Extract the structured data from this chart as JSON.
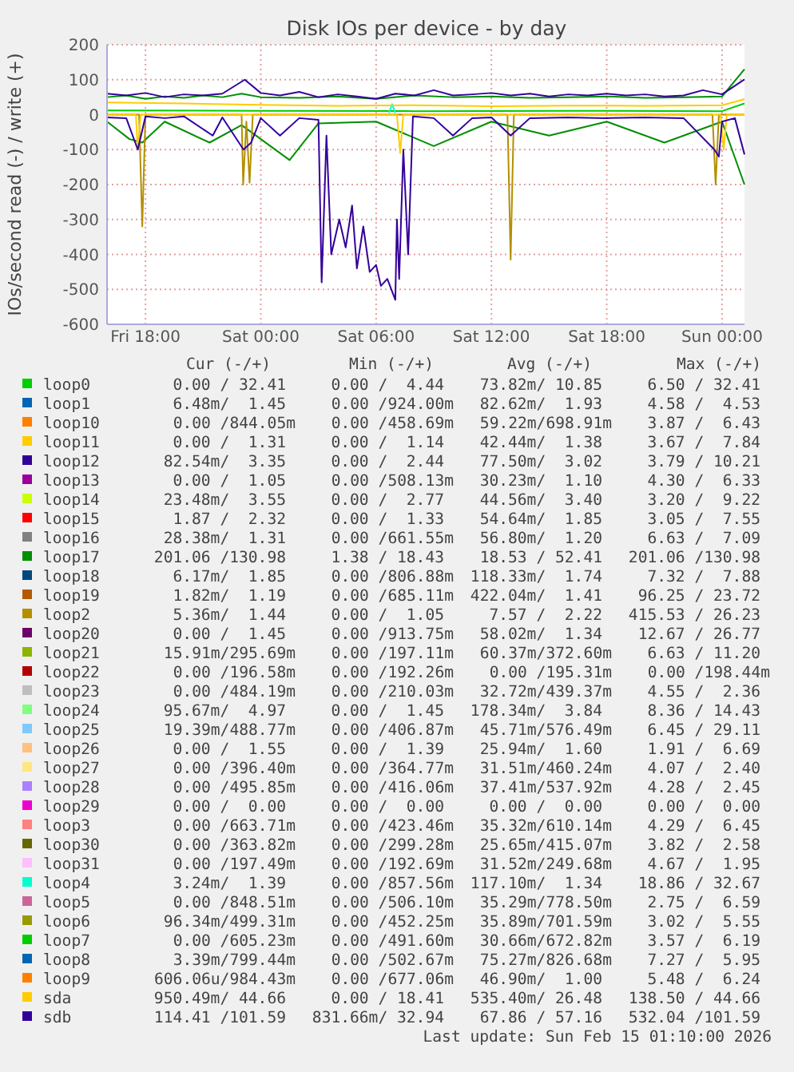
{
  "chart_data": {
    "type": "line",
    "title": "Disk IOs per device - by day",
    "ylabel": "IOs/second read (-) / write (+)",
    "xlim": [
      "2026-02-13T16:00",
      "2026-02-15T01:10"
    ],
    "xticks": [
      {
        "value": "2026-02-13T18:00",
        "label": "Fri 18:00"
      },
      {
        "value": "2026-02-14T00:00",
        "label": "Sat 00:00"
      },
      {
        "value": "2026-02-14T06:00",
        "label": "Sat 06:00"
      },
      {
        "value": "2026-02-14T12:00",
        "label": "Sat 12:00"
      },
      {
        "value": "2026-02-14T18:00",
        "label": "Sat 18:00"
      },
      {
        "value": "2026-02-15T00:00",
        "label": "Sun 00:00"
      }
    ],
    "ylim": [
      -600,
      200
    ],
    "yticks": [
      -600,
      -500,
      -400,
      -300,
      -200,
      -100,
      0,
      100,
      200
    ],
    "grid": true,
    "legend": "bottom",
    "series": [
      {
        "name": "loop0",
        "color": "#00cc00",
        "x": [
          "2026-02-13T16:00",
          "2026-02-14T00:00",
          "2026-02-14T08:00",
          "2026-02-14T16:00",
          "2026-02-15T00:00",
          "2026-02-15T01:10"
        ],
        "values": [
          12,
          11,
          10,
          11,
          10,
          32
        ]
      },
      {
        "name": "loop1",
        "color": "#0066b3"
      },
      {
        "name": "loop10",
        "color": "#ff8000"
      },
      {
        "name": "loop11",
        "color": "#ffcc00"
      },
      {
        "name": "loop12",
        "color": "#330099"
      },
      {
        "name": "loop13",
        "color": "#990099"
      },
      {
        "name": "loop14",
        "color": "#ccff00"
      },
      {
        "name": "loop15",
        "color": "#ff0000"
      },
      {
        "name": "loop16",
        "color": "#808080"
      },
      {
        "name": "loop17",
        "color": "#008f00",
        "x": [
          "2026-02-13T16:00",
          "2026-02-13T17:00",
          "2026-02-13T18:00",
          "2026-02-13T19:00",
          "2026-02-13T20:00",
          "2026-02-13T21:00",
          "2026-02-13T22:00",
          "2026-02-13T23:00",
          "2026-02-14T00:00",
          "2026-02-14T02:00",
          "2026-02-14T04:00",
          "2026-02-14T06:00",
          "2026-02-14T08:00",
          "2026-02-14T10:00",
          "2026-02-14T12:00",
          "2026-02-14T14:00",
          "2026-02-14T16:00",
          "2026-02-14T18:00",
          "2026-02-14T20:00",
          "2026-02-14T22:00",
          "2026-02-15T00:00",
          "2026-02-15T01:10"
        ],
        "values": [
          50,
          55,
          45,
          52,
          48,
          55,
          50,
          60,
          50,
          48,
          52,
          45,
          55,
          50,
          52,
          48,
          50,
          52,
          48,
          50,
          52,
          130
        ]
      },
      {
        "name": "loop18",
        "color": "#00487d"
      },
      {
        "name": "loop19",
        "color": "#b35a00"
      },
      {
        "name": "loop2",
        "color": "#b38f00"
      },
      {
        "name": "loop20",
        "color": "#6b006b"
      },
      {
        "name": "loop21",
        "color": "#8fb300"
      },
      {
        "name": "loop22",
        "color": "#b30000"
      },
      {
        "name": "loop23",
        "color": "#bebebe"
      },
      {
        "name": "loop24",
        "color": "#80ff80"
      },
      {
        "name": "loop25",
        "color": "#80c9ff"
      },
      {
        "name": "loop26",
        "color": "#ffc080"
      },
      {
        "name": "loop27",
        "color": "#ffe680"
      },
      {
        "name": "loop28",
        "color": "#aa80ff"
      },
      {
        "name": "loop29",
        "color": "#ee00cc"
      },
      {
        "name": "loop3",
        "color": "#ff8080"
      },
      {
        "name": "loop30",
        "color": "#666600"
      },
      {
        "name": "loop31",
        "color": "#ffbfff"
      },
      {
        "name": "loop4",
        "color": "#00ffcc",
        "x": [
          "2026-02-14T06:40",
          "2026-02-14T06:50",
          "2026-02-14T07:00"
        ],
        "values": [
          5,
          30,
          5
        ]
      },
      {
        "name": "loop5",
        "color": "#cc6699"
      },
      {
        "name": "loop6",
        "color": "#999900"
      },
      {
        "name": "loop7",
        "color": "#00cc00"
      },
      {
        "name": "loop8",
        "color": "#0066b3"
      },
      {
        "name": "loop9",
        "color": "#ff8000"
      },
      {
        "name": "sda",
        "color": "#ffcc00",
        "x": [
          "2026-02-13T16:00",
          "2026-02-13T20:00",
          "2026-02-14T00:00",
          "2026-02-14T04:00",
          "2026-02-14T08:00",
          "2026-02-14T12:00",
          "2026-02-14T16:00",
          "2026-02-14T20:00",
          "2026-02-15T00:00",
          "2026-02-15T01:10"
        ],
        "values": [
          35,
          32,
          28,
          25,
          27,
          24,
          26,
          25,
          27,
          44
        ]
      },
      {
        "name": "sdb",
        "color": "#330099",
        "x": [
          "2026-02-13T16:00",
          "2026-02-13T17:00",
          "2026-02-13T18:00",
          "2026-02-13T19:00",
          "2026-02-13T20:00",
          "2026-02-13T21:00",
          "2026-02-13T22:00",
          "2026-02-13T23:10",
          "2026-02-14T00:00",
          "2026-02-14T01:00",
          "2026-02-14T02:00",
          "2026-02-14T03:00",
          "2026-02-14T04:00",
          "2026-02-14T05:00",
          "2026-02-14T06:00",
          "2026-02-14T07:00",
          "2026-02-14T08:00",
          "2026-02-14T09:00",
          "2026-02-14T10:00",
          "2026-02-14T11:00",
          "2026-02-14T12:00",
          "2026-02-14T13:00",
          "2026-02-14T14:00",
          "2026-02-14T15:00",
          "2026-02-14T16:00",
          "2026-02-14T17:00",
          "2026-02-14T18:00",
          "2026-02-14T19:00",
          "2026-02-14T20:00",
          "2026-02-14T21:00",
          "2026-02-14T22:00",
          "2026-02-14T23:00",
          "2026-02-15T00:00",
          "2026-02-15T01:10"
        ],
        "values": [
          60,
          55,
          62,
          50,
          58,
          55,
          60,
          100,
          62,
          55,
          65,
          50,
          58,
          52,
          45,
          60,
          55,
          70,
          55,
          58,
          62,
          55,
          60,
          52,
          58,
          55,
          60,
          55,
          58,
          52,
          55,
          70,
          58,
          101
        ]
      },
      {
        "color": "#008f00",
        "x": [
          "2026-02-13T16:00",
          "2026-02-13T17:10",
          "2026-02-13T17:50",
          "2026-02-13T19:00",
          "2026-02-13T21:20",
          "2026-02-13T23:00",
          "2026-02-14T01:30",
          "2026-02-14T03:00",
          "2026-02-14T06:00",
          "2026-02-14T09:00",
          "2026-02-14T12:00",
          "2026-02-14T15:00",
          "2026-02-14T18:00",
          "2026-02-14T21:00",
          "2026-02-15T00:00",
          "2026-02-15T01:10"
        ],
        "values": [
          -20,
          -70,
          -80,
          -20,
          -80,
          -30,
          -130,
          -25,
          -20,
          -90,
          -20,
          -60,
          -20,
          -80,
          -20,
          -200
        ]
      },
      {
        "color": "#b38f00",
        "x": [
          "2026-02-13T16:00",
          "2026-02-13T17:40",
          "2026-02-13T17:50",
          "2026-02-13T18:00",
          "2026-02-13T23:00",
          "2026-02-13T23:05",
          "2026-02-13T23:15",
          "2026-02-13T23:25",
          "2026-02-13T23:35",
          "2026-02-14T12:50",
          "2026-02-14T13:00",
          "2026-02-14T13:10",
          "2026-02-14T23:30",
          "2026-02-14T23:40",
          "2026-02-14T23:50",
          "2026-02-15T01:10"
        ],
        "values": [
          0,
          0,
          -320,
          0,
          0,
          -200,
          -20,
          -195,
          0,
          0,
          -415,
          0,
          0,
          -200,
          0,
          0
        ]
      },
      {
        "color": "#ffcc00",
        "x": [
          "2026-02-13T16:00",
          "2026-02-13T17:30",
          "2026-02-13T17:36",
          "2026-02-13T17:45",
          "2026-02-14T07:05",
          "2026-02-14T07:15",
          "2026-02-14T07:25",
          "2026-02-14T23:55",
          "2026-02-15T00:05",
          "2026-02-15T00:15",
          "2026-02-15T01:10"
        ],
        "values": [
          0,
          0,
          -100,
          0,
          0,
          -110,
          0,
          0,
          -100,
          0,
          0
        ]
      },
      {
        "color": "#330099",
        "x": [
          "2026-02-13T16:00",
          "2026-02-13T17:00",
          "2026-02-13T17:36",
          "2026-02-13T18:00",
          "2026-02-13T19:00",
          "2026-02-13T20:00",
          "2026-02-13T21:30",
          "2026-02-13T22:00",
          "2026-02-13T23:06",
          "2026-02-13T23:30",
          "2026-02-14T00:00",
          "2026-02-14T01:00",
          "2026-02-14T02:00",
          "2026-02-14T03:00",
          "2026-02-14T03:10",
          "2026-02-14T03:25",
          "2026-02-14T03:40",
          "2026-02-14T04:05",
          "2026-02-14T04:25",
          "2026-02-14T04:45",
          "2026-02-14T05:00",
          "2026-02-14T05:20",
          "2026-02-14T05:40",
          "2026-02-14T06:00",
          "2026-02-14T06:15",
          "2026-02-14T06:35",
          "2026-02-14T07:00",
          "2026-02-14T07:05",
          "2026-02-14T07:12",
          "2026-02-14T07:25",
          "2026-02-14T07:40",
          "2026-02-14T07:55",
          "2026-02-14T09:00",
          "2026-02-14T10:00",
          "2026-02-14T11:00",
          "2026-02-14T12:00",
          "2026-02-14T13:00",
          "2026-02-14T14:00",
          "2026-02-14T16:00",
          "2026-02-14T18:00",
          "2026-02-14T20:00",
          "2026-02-14T22:00",
          "2026-02-14T23:36",
          "2026-02-14T23:50",
          "2026-02-15T00:00",
          "2026-02-15T00:40",
          "2026-02-15T01:10"
        ],
        "values": [
          -8,
          -10,
          -100,
          -5,
          -10,
          -5,
          -60,
          -8,
          -100,
          -80,
          -10,
          -60,
          -10,
          -15,
          -480,
          -60,
          -400,
          -300,
          -380,
          -260,
          -440,
          -320,
          -450,
          -430,
          -490,
          -470,
          -530,
          -300,
          -470,
          -100,
          -400,
          -5,
          -10,
          -60,
          -10,
          -8,
          -60,
          -10,
          -8,
          -10,
          -8,
          -10,
          -100,
          -120,
          -20,
          -10,
          -114
        ]
      }
    ],
    "annotations": [
      "Cur (-/+)",
      "Min (-/+)",
      "Avg (-/+)",
      "Max (-/+)",
      "0.00 / 32.41",
      "0.00 /  4.44",
      "73.82m/ 10.85",
      "6.50 / 32.41",
      "6.48m/  1.45",
      "0.00 /924.00m",
      "82.62m/  1.93",
      "4.58 /  4.53",
      "0.00 /844.05m",
      "0.00 /458.69m",
      "59.22m/698.91m",
      "3.87 /  6.43",
      "0.00 /  1.31",
      "0.00 /  1.14",
      "42.44m/  1.38",
      "3.67 /  7.84",
      "82.54m/  3.35",
      "0.00 /  2.44",
      "77.50m/  3.02",
      "3.79 / 10.21",
      "0.00 /  1.05",
      "0.00 /508.13m",
      "30.23m/  1.10",
      "4.30 /  6.33",
      "23.48m/  3.55",
      "0.00 /  2.77",
      "44.56m/  3.40",
      "3.20 /  9.22",
      "1.87 /  2.32",
      "0.00 /  1.33",
      "54.64m/  1.85",
      "3.05 /  7.55",
      "28.38m/  1.31",
      "0.00 /661.55m",
      "56.80m/  1.20",
      "6.63 /  7.09",
      "201.06 /130.98",
      "1.38 / 18.43",
      "18.53 / 52.41",
      "201.06 /130.98",
      "6.17m/  1.85",
      "0.00 /806.88m",
      "118.33m/  1.74",
      "7.32 /  7.88",
      "1.82m/  1.19",
      "0.00 /685.11m",
      "422.04m/  1.41",
      "96.25 / 23.72",
      "5.36m/  1.44",
      "0.00 /  1.05",
      "7.57 /  2.22",
      "415.53 / 26.23",
      "0.00 /  1.45",
      "0.00 /913.75m",
      "58.02m/  1.34",
      "12.67 / 26.77",
      "15.91m/295.69m",
      "0.00 /197.11m",
      "60.37m/372.60m",
      "6.63 / 11.20",
      "0.00 /196.58m",
      "0.00 /192.26m",
      "0.00 /195.31m",
      "0.00 /198.44m",
      "0.00 /484.19m",
      "0.00 /210.03m",
      "32.72m/439.37m",
      "4.55 /  2.36",
      "95.67m/  4.97",
      "0.00 /  1.45",
      "178.34m/  3.84",
      "8.36 / 14.43",
      "19.39m/488.77m",
      "0.00 /406.87m",
      "45.71m/576.49m",
      "6.45 / 29.11",
      "0.00 /  1.55",
      "0.00 /  1.39",
      "25.94m/  1.60",
      "1.91 /  6.69",
      "0.00 /396.40m",
      "0.00 /364.77m",
      "31.51m/460.24m",
      "4.07 /  2.40",
      "0.00 /495.85m",
      "0.00 /416.06m",
      "37.41m/537.92m",
      "4.28 /  2.45",
      "0.00 /  0.00",
      "0.00 /  0.00",
      "0.00 /  0.00",
      "0.00 /  0.00",
      "0.00 /663.71m",
      "0.00 /423.46m",
      "35.32m/610.14m",
      "4.29 /  6.45",
      "0.00 /363.82m",
      "0.00 /299.28m",
      "25.65m/415.07m",
      "3.82 /  2.58",
      "0.00 /197.49m",
      "0.00 /192.69m",
      "31.52m/249.68m",
      "4.67 /  1.95",
      "3.24m/  1.39",
      "0.00 /857.56m",
      "117.10m/  1.34",
      "18.86 / 32.67",
      "0.00 /848.51m",
      "0.00 /506.10m",
      "35.29m/778.50m",
      "2.75 /  6.59",
      "96.34m/499.31m",
      "0.00 /452.25m",
      "35.89m/701.59m",
      "3.02 /  5.55",
      "0.00 /605.23m",
      "0.00 /491.60m",
      "30.66m/672.82m",
      "3.57 /  6.19",
      "3.39m/799.44m",
      "0.00 /502.67m",
      "75.27m/826.68m",
      "7.27 /  5.95",
      "606.06u/984.43m",
      "0.00 /677.06m",
      "46.90m/  1.00",
      "5.48 /  6.24",
      "950.49m/ 44.66",
      "0.00 / 18.41",
      "535.40m/ 26.48",
      "138.50 / 44.66",
      "114.41 /101.59",
      "831.66m/ 32.94",
      "67.86 / 57.16",
      "532.04 /101.59",
      "Last update: Sun Feb 15 01:10:00 2026"
    ]
  }
}
